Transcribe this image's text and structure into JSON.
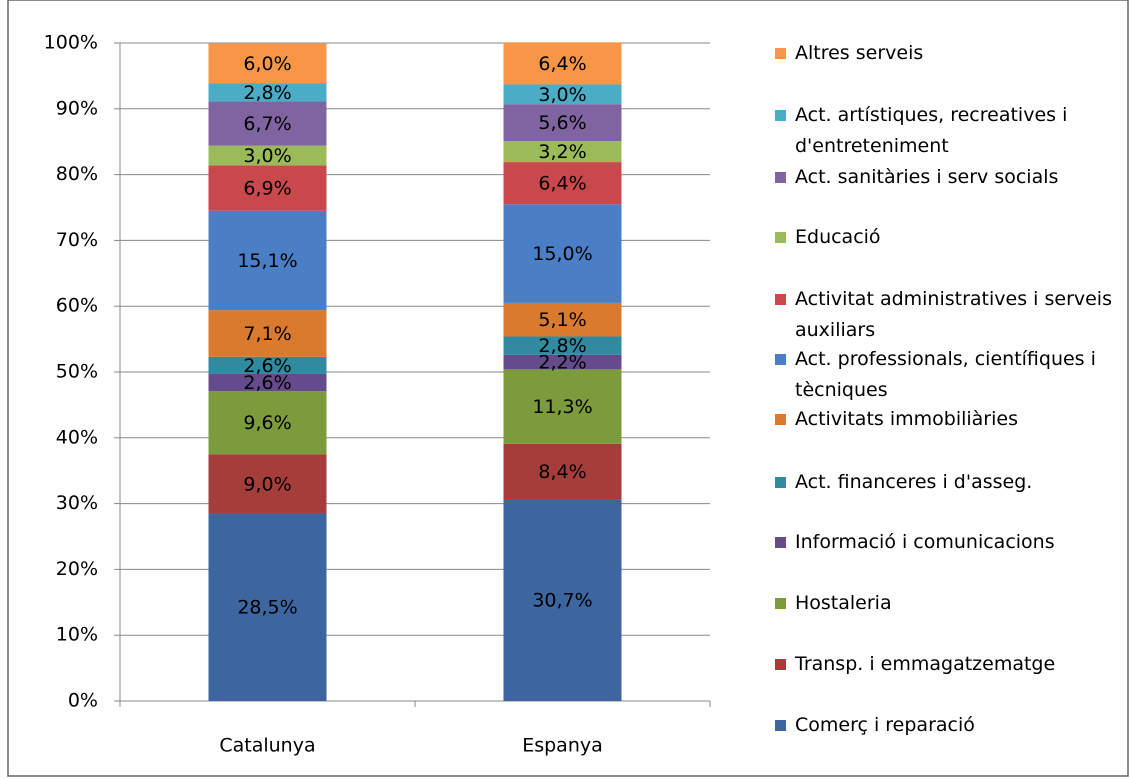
{
  "chart_data": {
    "type": "stacked_bar",
    "categories": [
      "Catalunya",
      "Espanya"
    ],
    "ylim": [
      0,
      100
    ],
    "yticks": [
      {
        "value": 0,
        "label": "0%"
      },
      {
        "value": 10,
        "label": "10%"
      },
      {
        "value": 20,
        "label": "20%"
      },
      {
        "value": 30,
        "label": "30%"
      },
      {
        "value": 40,
        "label": "40%"
      },
      {
        "value": 50,
        "label": "50%"
      },
      {
        "value": 60,
        "label": "60%"
      },
      {
        "value": 70,
        "label": "70%"
      },
      {
        "value": 80,
        "label": "80%"
      },
      {
        "value": 90,
        "label": "90%"
      },
      {
        "value": 100,
        "label": "100%"
      }
    ],
    "grid": true,
    "legend": "right",
    "series": [
      {
        "name": "Comerç i reparació",
        "color": "#3d66a1",
        "values": [
          28.5,
          30.7
        ],
        "value_labels": [
          "28,5%",
          "30,7%"
        ]
      },
      {
        "name": "Transp. i emmagatzematge",
        "color": "#a53d3b",
        "values": [
          9.0,
          8.4
        ],
        "value_labels": [
          "9,0%",
          "8,4%"
        ]
      },
      {
        "name": "Hostaleria",
        "color": "#7b9b3d",
        "values": [
          9.6,
          11.3
        ],
        "value_labels": [
          "9,6%",
          "11,3%"
        ]
      },
      {
        "name": "Informació i comunicacions",
        "color": "#654b8b",
        "values": [
          2.6,
          2.2
        ],
        "value_labels": [
          "2,6%",
          "2,2%"
        ]
      },
      {
        "name": "Act. financeres i d'asseg.",
        "color": "#308ba1",
        "values": [
          2.6,
          2.8
        ],
        "value_labels": [
          "2,6%",
          "2,8%"
        ]
      },
      {
        "name": "Activitats immobiliàries",
        "color": "#d97a2f",
        "values": [
          7.1,
          5.1
        ],
        "value_labels": [
          "7,1%",
          "5,1%"
        ]
      },
      {
        "name": "Act. professionals, científiques i tècniques",
        "color": "#4b7fc5",
        "values": [
          15.1,
          15.0
        ],
        "value_labels": [
          "15,1%",
          "15,0%"
        ]
      },
      {
        "name": "Activitat administratives i serveis auxiliars",
        "color": "#c9484b",
        "values": [
          6.9,
          6.4
        ],
        "value_labels": [
          "6,9%",
          "6,4%"
        ]
      },
      {
        "name": "Educació",
        "color": "#9bbb59",
        "values": [
          3.0,
          3.2
        ],
        "value_labels": [
          "3,0%",
          "3,2%"
        ]
      },
      {
        "name": "Act. sanitàries i serv socials",
        "color": "#8064a2",
        "values": [
          6.7,
          5.6
        ],
        "value_labels": [
          "6,7%",
          "5,6%"
        ]
      },
      {
        "name": "Act. artístiques, recreatives i d'entreteniment",
        "color": "#4bacc6",
        "values": [
          2.8,
          3.0
        ],
        "value_labels": [
          "2,8%",
          "3,0%"
        ]
      },
      {
        "name": "Altres serveis",
        "color": "#f79646",
        "values": [
          6.0,
          6.4
        ],
        "value_labels": [
          "6,0%",
          "6,4%"
        ]
      }
    ]
  }
}
